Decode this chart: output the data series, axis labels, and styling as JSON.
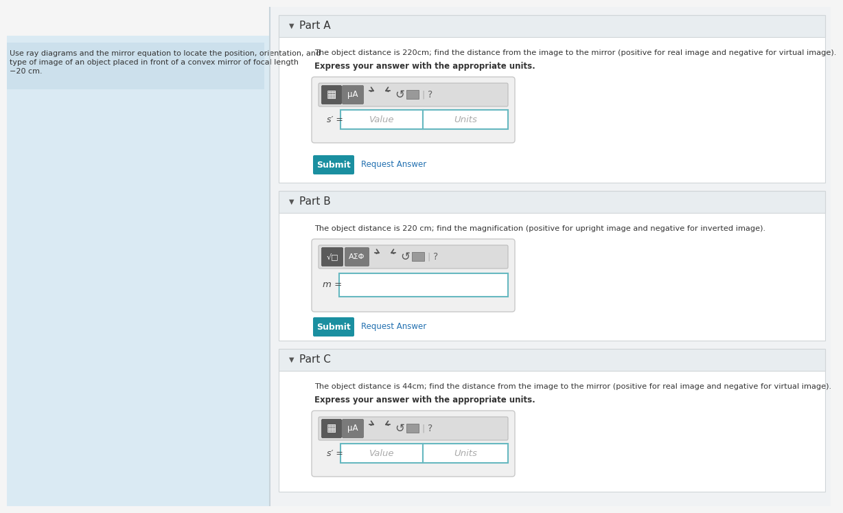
{
  "fig_w": 12.0,
  "fig_h": 7.27,
  "dpi": 100,
  "bg_color": "#f5f5f5",
  "left_panel_bg": "#daeaf3",
  "left_panel_text_bg": "#cce0ec",
  "right_bg": "#f5f5f5",
  "section_header_bg": "#e8edf0",
  "section_body_bg": "#ffffff",
  "section_border": "#d0d5d8",
  "toolbar_bg": "#e8e8e8",
  "toolbar_border": "#cccccc",
  "btn1_color": "#666666",
  "btn2_color": "#888888",
  "input_bg": "#ffffff",
  "input_border_color": "#66b8c0",
  "teal_button": "#1a8fa0",
  "link_color": "#2270b0",
  "text_dark": "#333333",
  "text_light": "#999999",
  "placeholder_color": "#aaaaaa",
  "left_text_line1": "Use ray diagrams and the mirror equation to locate the position, orientation, and",
  "left_text_line2": "type of image of an object placed in front of a convex mirror of focal length",
  "left_text_line3": "−20 cm.",
  "part_a_header": "Part A",
  "part_a_q1": "The object distance is 220cm; find the distance from the image to the mirror (positive for real image and negative for virtual image).",
  "part_a_q2": "Express your answer with the appropriate units.",
  "part_b_header": "Part B",
  "part_b_q1": "The object distance is 220 cm; find the magnification (positive for upright image and negative for inverted image).",
  "part_c_header": "Part C",
  "part_c_q1": "The object distance is 44cm; find the distance from the image to the mirror (positive for real image and negative for virtual image).",
  "part_c_q2": "Express your answer with the appropriate units.",
  "submit_text": "Submit",
  "request_text": "Request Answer",
  "value_placeholder": "Value",
  "units_placeholder": "Units"
}
